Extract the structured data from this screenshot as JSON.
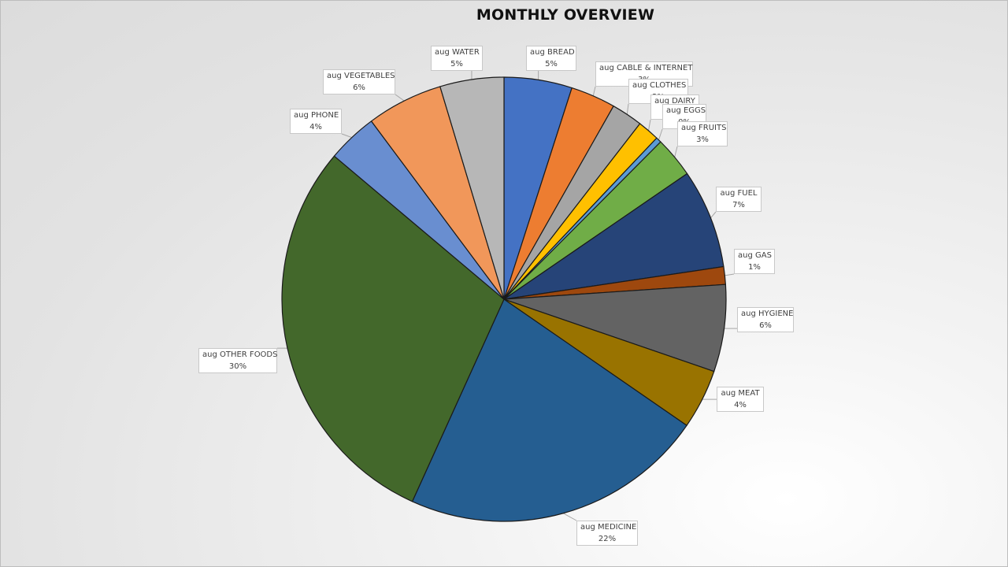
{
  "chart_data": {
    "type": "pie",
    "title": "MONTHLY OVERVIEW",
    "legend": "none",
    "slices": [
      {
        "name": "aug BREAD",
        "label": "5%",
        "value": 5.0,
        "color": "#4472C4"
      },
      {
        "name": "aug CABLE & INTERNET",
        "label": "3%",
        "value": 3.3,
        "color": "#ED7D31"
      },
      {
        "name": "aug CLOTHES",
        "label": "2%",
        "value": 2.3,
        "color": "#A5A5A5"
      },
      {
        "name": "aug DAIRY",
        "label": "2%",
        "value": 1.6,
        "color": "#FFC000"
      },
      {
        "name": "aug EGGS",
        "label": "0%",
        "value": 0.4,
        "color": "#5B9BD5"
      },
      {
        "name": "aug FRUITS",
        "label": "3%",
        "value": 3.0,
        "color": "#70AD47"
      },
      {
        "name": "aug FUEL",
        "label": "7%",
        "value": 7.3,
        "color": "#264478"
      },
      {
        "name": "aug GAS",
        "label": "1%",
        "value": 1.3,
        "color": "#9E480E"
      },
      {
        "name": "aug HYGIENE",
        "label": "6%",
        "value": 6.4,
        "color": "#636363"
      },
      {
        "name": "aug MEAT",
        "label": "4%",
        "value": 4.4,
        "color": "#997300"
      },
      {
        "name": "aug MEDICINE",
        "label": "22%",
        "value": 22.4,
        "color": "#255E91"
      },
      {
        "name": "aug OTHER FOODS",
        "label": "30%",
        "value": 29.7,
        "color": "#43682B"
      },
      {
        "name": "aug PHONE",
        "label": "4%",
        "value": 3.7,
        "color": "#698ED0"
      },
      {
        "name": "aug VEGETABLES",
        "label": "6%",
        "value": 5.6,
        "color": "#F1975A"
      },
      {
        "name": "aug WATER",
        "label": "5%",
        "value": 4.7,
        "color": "#B7B7B7"
      }
    ]
  }
}
